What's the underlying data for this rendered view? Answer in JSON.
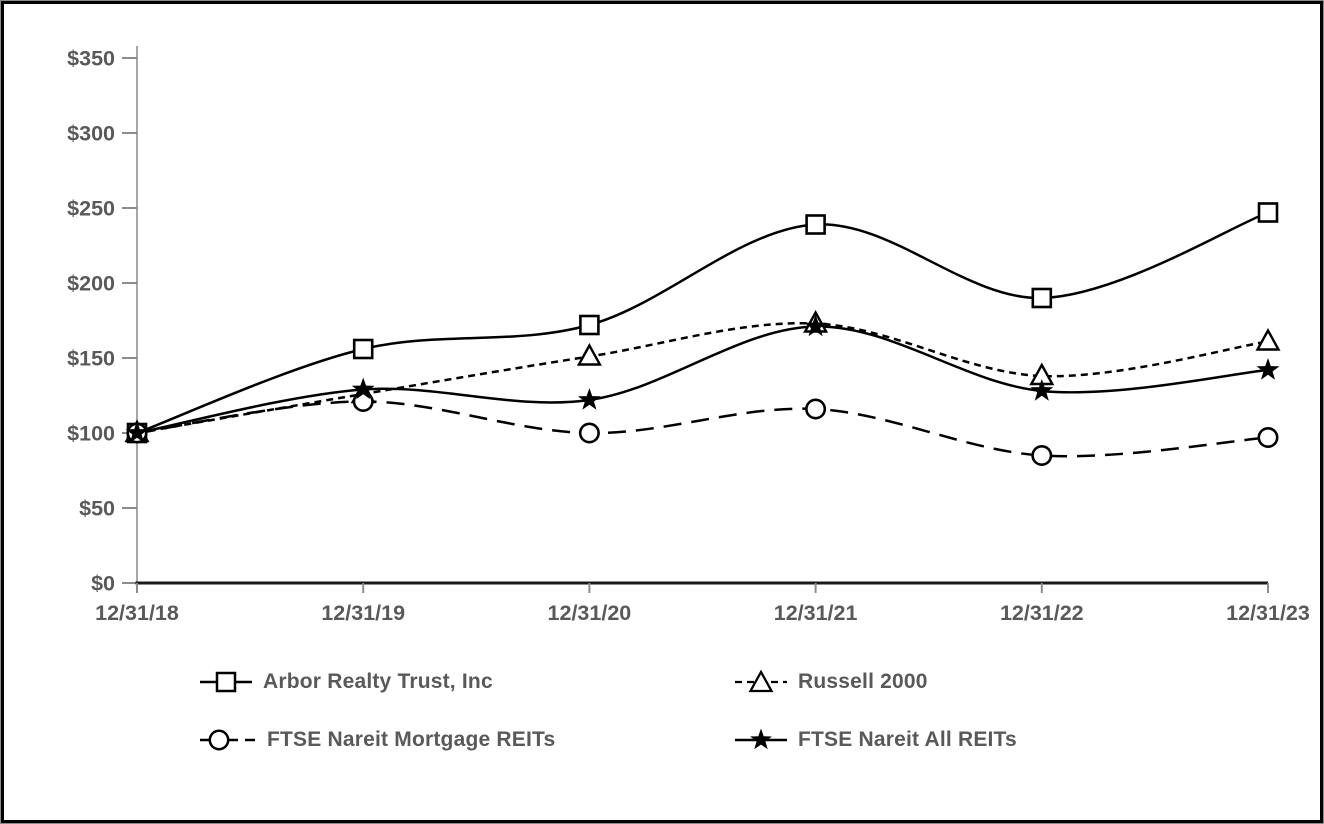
{
  "chart_data": {
    "type": "line",
    "title": "",
    "xlabel": "",
    "ylabel": "",
    "x_labels": [
      "12/31/18",
      "12/31/19",
      "12/31/20",
      "12/31/21",
      "12/31/22",
      "12/31/23"
    ],
    "y_tick_labels": [
      "$0",
      "$50",
      "$100",
      "$150",
      "$200",
      "$250",
      "$300",
      "$350"
    ],
    "ylim": [
      0,
      350
    ],
    "y_tick_step": 50,
    "grid": false,
    "legend_position": "bottom",
    "series": [
      {
        "name": "Arbor Realty Trust, Inc",
        "marker": "square",
        "marker_style": "open",
        "line_style": "solid",
        "color": "#000000",
        "values": [
          100,
          156,
          172,
          239,
          190,
          247
        ]
      },
      {
        "name": "Russell 2000",
        "marker": "triangle",
        "marker_style": "open",
        "line_style": "short-dash",
        "color": "#000000",
        "values": [
          100,
          126,
          151,
          173,
          138,
          161
        ]
      },
      {
        "name": "FTSE Nareit Mortgage REITs",
        "marker": "circle",
        "marker_style": "open",
        "line_style": "long-dash",
        "color": "#000000",
        "values": [
          100,
          121,
          100,
          116,
          85,
          97
        ]
      },
      {
        "name": "FTSE Nareit All REITs",
        "marker": "star",
        "marker_style": "filled",
        "line_style": "solid",
        "color": "#000000",
        "values": [
          100,
          129,
          122,
          171,
          128,
          142
        ]
      }
    ],
    "colors": {
      "line": "#000000",
      "axis_line": "#a6a6a6",
      "tick": "#8c8c8c",
      "x_axis_line": "#1a1a1a",
      "label_text": "#595959",
      "background": "#ffffff",
      "frame_border": "#000000"
    }
  }
}
